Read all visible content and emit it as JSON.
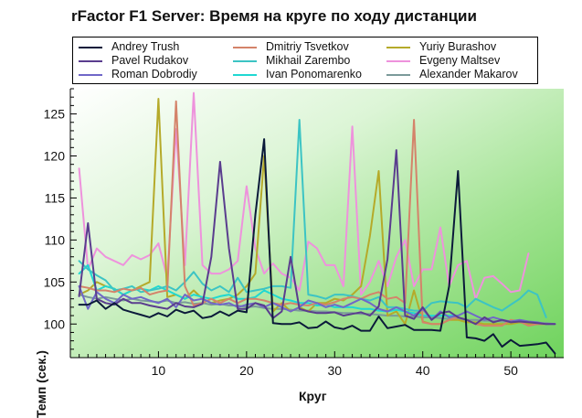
{
  "chart_data": {
    "type": "line",
    "title": "rFactor F1 Server: Время на круге по ходу дистанции",
    "xlabel": "Круг",
    "ylabel": "Темп (сек.)",
    "xlim": [
      0,
      56
    ],
    "ylim": [
      96,
      128
    ],
    "xticks": [
      10,
      20,
      30,
      40,
      50
    ],
    "yticks": [
      100,
      105,
      110,
      115,
      120,
      125
    ],
    "legend_position": "top",
    "background": "green-gradient",
    "series": [
      {
        "name": "Andrey Trush",
        "color": "#0b1a3a",
        "x": [
          1,
          2,
          3,
          4,
          5,
          6,
          7,
          8,
          9,
          10,
          11,
          12,
          13,
          14,
          15,
          16,
          17,
          18,
          19,
          20,
          21,
          22,
          23,
          24,
          25,
          26,
          27,
          28,
          29,
          30,
          31,
          32,
          33,
          34,
          35,
          36,
          37,
          38,
          39,
          40,
          41,
          42,
          43,
          44,
          45,
          46,
          47,
          48,
          49,
          50,
          51,
          52,
          53,
          54,
          55
        ],
        "y": [
          102.3,
          102.3,
          102.8,
          101.8,
          102.5,
          101.7,
          101.4,
          101.1,
          100.8,
          101.3,
          100.9,
          101.7,
          101.3,
          101.6,
          100.7,
          100.9,
          101.5,
          101.0,
          101.6,
          101.4,
          113.0,
          122.0,
          100.1,
          100.0,
          100.0,
          100.2,
          99.5,
          99.6,
          100.3,
          99.6,
          99.4,
          99.8,
          99.2,
          99.2,
          100.9,
          99.5,
          99.7,
          99.9,
          99.3,
          99.3,
          99.3,
          99.2,
          104.5,
          118.2,
          98.4,
          98.3,
          98.0,
          98.8,
          97.3,
          98.1,
          97.4,
          97.5,
          97.6,
          97.8,
          96.5
        ]
      },
      {
        "name": "Pavel Rudakov",
        "color": "#5a3d8e",
        "x": [
          1,
          2,
          3,
          4,
          5,
          6,
          7,
          8,
          9,
          10,
          11,
          12,
          13,
          14,
          15,
          16,
          17,
          18,
          19,
          20,
          21,
          22,
          23,
          24,
          25,
          26,
          27,
          28,
          29,
          30,
          31,
          32,
          33,
          34,
          35,
          36,
          37,
          38,
          39,
          40,
          41,
          42,
          43,
          44,
          45,
          46,
          47,
          48,
          49,
          50,
          51,
          52,
          53,
          54,
          55
        ],
        "y": [
          103.3,
          112.0,
          103.0,
          102.5,
          102.3,
          103.0,
          102.5,
          102.5,
          102.2,
          102.0,
          101.8,
          102.5,
          102.1,
          102.0,
          102.4,
          108.0,
          119.3,
          109.0,
          101.8,
          101.8,
          102.5,
          102.2,
          100.7,
          101.5,
          108.0,
          101.8,
          101.5,
          101.3,
          101.3,
          101.4,
          101.0,
          101.2,
          101.4,
          101.0,
          102.1,
          107.7,
          120.7,
          101.0,
          100.6,
          102.0,
          100.5,
          101.3,
          101.5,
          100.8,
          100.5,
          100.0,
          100.8,
          100.2,
          100.5,
          100.2,
          100.3,
          100.2,
          100.1,
          100.0,
          100.0
        ]
      },
      {
        "name": "Roman Dobrodiy",
        "color": "#7067c8",
        "x": [
          1,
          2,
          3,
          4,
          5,
          6,
          7,
          8,
          9,
          10,
          11,
          12,
          13,
          14,
          15,
          16,
          17,
          18,
          19,
          20,
          21,
          22,
          23,
          24,
          25,
          26,
          27,
          28,
          29,
          30,
          31,
          32,
          33,
          34,
          35,
          36,
          37,
          38,
          39,
          40,
          41,
          42,
          43,
          44,
          45,
          46,
          47,
          48,
          49,
          50,
          51,
          52,
          53,
          54,
          55
        ],
        "y": [
          104.5,
          101.8,
          103.8,
          103.0,
          102.5,
          103.5,
          103.0,
          103.2,
          102.8,
          102.5,
          103.0,
          102.0,
          103.5,
          102.8,
          103.0,
          102.5,
          102.3,
          102.5,
          102.0,
          102.3,
          102.5,
          102.0,
          102.5,
          102.0,
          101.5,
          102.0,
          102.8,
          102.5,
          102.0,
          102.3,
          102.0,
          102.5,
          103.0,
          102.5,
          101.8,
          101.5,
          102.0,
          101.5,
          101.0,
          101.8,
          100.5,
          101.5,
          100.8,
          101.0,
          101.5,
          101.0,
          100.5,
          100.8,
          100.5,
          100.3,
          100.5,
          100.3,
          100.2,
          100.0,
          100.0
        ]
      },
      {
        "name": "Dmitriy Tsvetkov",
        "color": "#d4836a",
        "x": [
          1,
          2,
          3,
          4,
          5,
          6,
          7,
          8,
          9,
          10,
          11,
          12,
          13,
          14,
          15,
          16,
          17,
          18,
          19,
          20,
          21,
          22,
          23,
          24,
          25,
          26,
          27,
          28,
          29,
          30,
          31,
          32,
          33,
          34,
          35,
          36,
          37,
          38,
          39,
          40,
          41,
          42,
          43,
          44,
          45,
          46,
          47,
          48,
          49,
          50,
          51,
          52,
          53,
          54
        ],
        "y": [
          104.5,
          104.3,
          104.0,
          104.0,
          103.8,
          104.2,
          104.0,
          104.3,
          103.5,
          103.8,
          104.0,
          126.5,
          104.5,
          102.2,
          102.5,
          103.0,
          102.5,
          103.0,
          102.5,
          103.0,
          103.0,
          102.8,
          102.5,
          102.3,
          102.5,
          102.3,
          102.2,
          102.5,
          102.3,
          102.6,
          103.0,
          103.2,
          103.0,
          103.5,
          103.8,
          103.0,
          103.2,
          102.5,
          124.3,
          100.2,
          100.0,
          100.0,
          100.5,
          100.8,
          100.5,
          100.0,
          99.8,
          99.8,
          99.8,
          100.5,
          100.3,
          99.8,
          100.0,
          100.0
        ]
      },
      {
        "name": "Mikhail Zarembo",
        "color": "#3cc4c4",
        "x": [
          1,
          2,
          3,
          4,
          5,
          6,
          7,
          8,
          9,
          10,
          11,
          12,
          13,
          14,
          15,
          16,
          17,
          18,
          19,
          20,
          21,
          22,
          23,
          24,
          25,
          26,
          27,
          28,
          29,
          30,
          31,
          32,
          33,
          34,
          35,
          36,
          37,
          38,
          39,
          40,
          41,
          42,
          43,
          44,
          45,
          46,
          47,
          48,
          49,
          50,
          51,
          52,
          53,
          54
        ],
        "y": [
          107.5,
          106.5,
          105.8,
          105.2,
          104.0,
          104.2,
          104.5,
          103.8,
          104.0,
          104.2,
          104.5,
          104.0,
          105.0,
          106.2,
          104.8,
          104.0,
          104.5,
          103.8,
          105.5,
          103.8,
          104.0,
          104.2,
          104.5,
          104.5,
          104.3,
          124.3,
          103.5,
          103.3,
          103.0,
          103.5,
          103.5,
          103.3,
          103.0,
          102.8,
          103.2,
          102.0,
          102.0,
          101.8,
          101.6,
          101.6,
          102.5,
          102.7,
          102.6,
          102.5,
          102.0,
          103.0,
          102.5,
          102.0,
          101.6,
          102.3,
          103.0,
          104.0,
          103.5,
          100.8
        ]
      },
      {
        "name": "Ivan Ponomarenko",
        "color": "#1fd8d2",
        "x": [
          1,
          2,
          3,
          4,
          5,
          6,
          7,
          8,
          9,
          10,
          11,
          12,
          13,
          14,
          15,
          16,
          17,
          18,
          19,
          20,
          21,
          22,
          23,
          24,
          25,
          26,
          27,
          28,
          29,
          30,
          31,
          32,
          33,
          34,
          35,
          36,
          37,
          38,
          39,
          40,
          41,
          42,
          43,
          44
        ],
        "y": [
          106.0,
          107.0,
          104.0,
          104.5,
          104.2,
          103.5,
          104.0,
          104.2,
          104.0,
          104.5,
          104.0,
          103.5,
          103.0,
          103.5,
          103.2,
          103.0,
          103.3,
          103.5,
          103.0,
          103.0,
          103.2,
          104.0,
          103.5,
          103.0,
          102.8,
          102.5,
          102.5,
          102.2,
          102.3,
          102.0,
          102.0,
          102.0,
          101.8,
          101.8,
          101.6,
          101.5,
          101.7,
          101.5,
          101.3,
          101.0,
          101.0,
          101.0,
          101.0,
          101.0
        ]
      },
      {
        "name": "Yuriy Burashov",
        "color": "#b5aa2a",
        "x": [
          1,
          2,
          3,
          4,
          5,
          6,
          7,
          8,
          9,
          10,
          11,
          12,
          13,
          14,
          15,
          16,
          17,
          18,
          19,
          20,
          21,
          22,
          23,
          24,
          25,
          26,
          27,
          28,
          29,
          30,
          31,
          32,
          33,
          34,
          35,
          36,
          37,
          38,
          39,
          40,
          41,
          42,
          43,
          44,
          45,
          46,
          47,
          48,
          49,
          50,
          51,
          52,
          53,
          54
        ],
        "y": [
          103.5,
          104.0,
          105.0,
          104.5,
          104.2,
          103.5,
          104.0,
          104.5,
          105.0,
          126.8,
          103.2,
          103.5,
          103.0,
          104.0,
          103.0,
          102.5,
          102.8,
          103.0,
          103.5,
          104.5,
          106.0,
          120.0,
          101.5,
          102.5,
          101.5,
          102.0,
          101.5,
          102.5,
          102.5,
          103.0,
          102.8,
          103.5,
          104.5,
          110.5,
          118.2,
          101.0,
          101.5,
          100.0,
          104.0,
          100.3,
          100.0,
          100.0,
          100.5,
          100.5,
          100.2,
          100.2,
          100.0,
          100.0,
          100.0,
          100.0,
          100.2,
          100.0,
          100.0,
          100.0
        ]
      },
      {
        "name": "Evgeny Maltsev",
        "color": "#ee92dc",
        "x": [
          1,
          2,
          3,
          4,
          5,
          6,
          7,
          8,
          9,
          10,
          11,
          12,
          13,
          14,
          15,
          16,
          17,
          18,
          19,
          20,
          21,
          22,
          23,
          24,
          25,
          26,
          27,
          28,
          29,
          30,
          31,
          32,
          33,
          34,
          35,
          36,
          37,
          38,
          39,
          40,
          41,
          42,
          43,
          44,
          45,
          46,
          47,
          48,
          49,
          50,
          51,
          52
        ],
        "y": [
          118.5,
          106.5,
          109.0,
          108.0,
          107.5,
          107.0,
          108.2,
          107.7,
          108.2,
          109.6,
          105.5,
          123.2,
          107.0,
          127.5,
          107.0,
          106.0,
          106.0,
          106.5,
          107.5,
          116.4,
          109.0,
          106.0,
          107.2,
          106.0,
          105.5,
          104.0,
          109.8,
          109.0,
          107.0,
          107.0,
          104.5,
          123.5,
          103.5,
          105.0,
          107.5,
          104.5,
          108.0,
          110.0,
          104.5,
          106.5,
          106.5,
          111.5,
          104.5,
          107.0,
          107.5,
          103.0,
          105.5,
          105.7,
          104.8,
          103.8,
          104.0,
          108.4
        ]
      },
      {
        "name": "Alexander Makarov",
        "color": "#7b9a9a",
        "x": [
          1,
          2,
          3,
          4,
          5,
          6,
          7,
          8,
          9,
          10,
          11,
          12,
          13,
          14,
          15,
          16,
          17,
          18,
          19,
          20,
          21,
          22,
          23,
          24,
          25,
          26,
          27,
          28,
          29,
          30,
          31,
          32,
          33,
          34,
          35,
          36,
          37,
          38,
          39,
          40,
          41,
          42,
          43,
          44,
          45,
          46,
          47,
          48,
          49,
          50,
          51,
          52,
          53,
          54,
          55
        ],
        "y": [
          103.5,
          103.2,
          103.0,
          103.2,
          103.0,
          102.8,
          103.0,
          102.8,
          102.7,
          102.6,
          102.8,
          102.5,
          102.6,
          102.4,
          102.5,
          102.3,
          102.4,
          102.2,
          102.2,
          102.0,
          102.1,
          101.9,
          101.8,
          101.8,
          101.7,
          101.6,
          101.6,
          101.5,
          101.5,
          101.4,
          101.3,
          101.3,
          101.2,
          101.2,
          101.1,
          101.0,
          101.0,
          100.9,
          100.9,
          100.8,
          100.8,
          100.7,
          100.6,
          100.6,
          100.5,
          100.5,
          100.4,
          100.4,
          100.3,
          100.3,
          100.2,
          100.2,
          100.1,
          100.1,
          100.0
        ]
      }
    ]
  }
}
